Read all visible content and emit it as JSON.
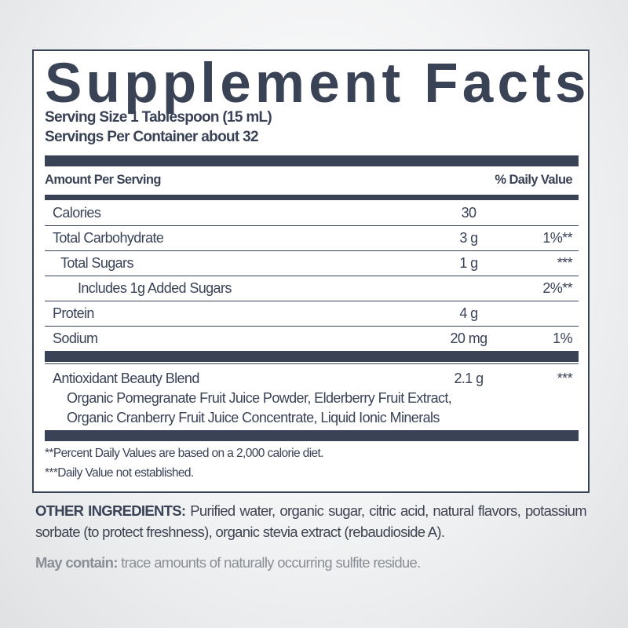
{
  "label": {
    "title": "Supplement Facts",
    "serving_size": "Serving Size 1 Tablespoon (15 mL)",
    "servings_per_container": "Servings Per Container about 32",
    "header_amount": "Amount Per Serving",
    "header_dv": "% Daily Value",
    "rows": [
      {
        "name": "Calories",
        "amount": "30",
        "dv": ""
      },
      {
        "name": "Total Carbohydrate",
        "amount": "3 g",
        "dv": "1%**"
      },
      {
        "name": "Total Sugars",
        "amount": "1 g",
        "dv": "***"
      },
      {
        "name": "Includes 1g Added Sugars",
        "amount": "",
        "dv": "2%**"
      },
      {
        "name": "Protein",
        "amount": "4 g",
        "dv": ""
      },
      {
        "name": "Sodium",
        "amount": "20 mg",
        "dv": "1%"
      }
    ],
    "blend": {
      "name": "Antioxidant Beauty Blend",
      "amount": "2.1 g",
      "dv": "***",
      "ingredients_line1": "Organic Pomegranate Fruit Juice Powder, Elderberry Fruit Extract,",
      "ingredients_line2": "Organic Cranberry Fruit Juice Concentrate, Liquid Ionic Minerals"
    },
    "footnote1": "**Percent Daily Values are based on a 2,000 calorie diet.",
    "footnote2": "***Daily Value not established."
  },
  "other_ingredients": {
    "label": "OTHER INGREDIENTS:",
    "text": "Purified water, organic sugar, citric acid, natural flavors, potassium sorbate (to protect freshness), organic stevia extract (rebaudioside A)."
  },
  "may_contain": {
    "label": "May contain:",
    "text": "trace amounts of naturally occurring sulfite residue."
  },
  "colors": {
    "ink": "#3a4256",
    "muted": "#8a8e96"
  }
}
